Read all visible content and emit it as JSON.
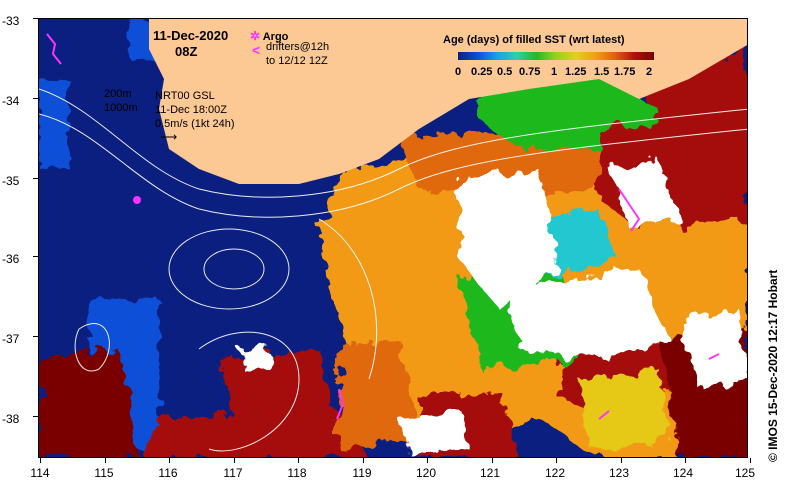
{
  "map": {
    "date": "11-Dec-2020",
    "hour": "08Z",
    "argo_label": "Argo",
    "drifters_line1": "drifters@12h",
    "drifters_line2": "to 12/12 12Z",
    "isobath_200": "200m",
    "isobath_1000": "1000m",
    "model": "NRT00 GSL",
    "model_time": "11-Dec 18:00Z",
    "vector_scale": "0.5m/s (1kt 24h)",
    "colorbar_title": "Age (days) of filled SST (wrt latest)",
    "colorbar_labels": [
      "0",
      "0.25",
      "0.5",
      "0.75",
      "1",
      "1.25",
      "1.5",
      "1.75",
      "2"
    ],
    "credit": "© IMOS 15-Dec-2020 12:17 Hobart",
    "lat_labels": [
      "-33",
      "-34",
      "-35",
      "-36",
      "-37",
      "-38"
    ],
    "lon_labels": [
      "114",
      "115",
      "116",
      "117",
      "118",
      "119",
      "120",
      "121",
      "122",
      "123",
      "124",
      "125"
    ],
    "lon_range": [
      114,
      125
    ],
    "lat_range": [
      -38.5,
      -33
    ],
    "colors": {
      "land": "#fcc894",
      "deep_ocean": "#0a1f80",
      "argo_marker": "#ff33ff",
      "drifter": "#ff33ff",
      "contour": "#ffffff"
    }
  }
}
